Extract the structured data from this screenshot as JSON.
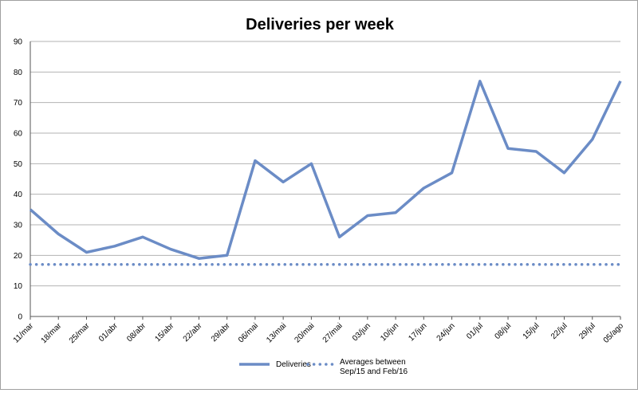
{
  "chart_data": {
    "type": "line",
    "title": "Deliveries per week",
    "xlabel": "",
    "ylabel": "",
    "ylim": [
      0,
      90
    ],
    "ytick_step": 10,
    "grid": true,
    "legend_position": "bottom",
    "categories": [
      "11/mar",
      "18/mar",
      "25/mar",
      "01/abr",
      "08/abr",
      "15/abr",
      "22/abr",
      "29/abr",
      "06/mai",
      "13/mai",
      "20/mai",
      "27/mai",
      "03/jun",
      "10/jun",
      "17/jun",
      "24/jun",
      "01/jul",
      "08/jul",
      "15/jul",
      "22/jul",
      "29/jul",
      "05/ago"
    ],
    "series": [
      {
        "name": "Deliveries",
        "style": "solid",
        "color": "#6b8cc6",
        "values": [
          35,
          27,
          21,
          23,
          26,
          22,
          19,
          20,
          51,
          44,
          50,
          26,
          33,
          34,
          42,
          47,
          77,
          55,
          54,
          47,
          58,
          77
        ]
      },
      {
        "name": "Averages between Sep/15 and Feb/16",
        "name_lines": [
          "Averages between",
          "Sep/15 and Feb/16"
        ],
        "style": "dotted",
        "color": "#6b8cc6",
        "values": [
          17,
          17,
          17,
          17,
          17,
          17,
          17,
          17,
          17,
          17,
          17,
          17,
          17,
          17,
          17,
          17,
          17,
          17,
          17,
          17,
          17,
          17
        ]
      }
    ]
  }
}
